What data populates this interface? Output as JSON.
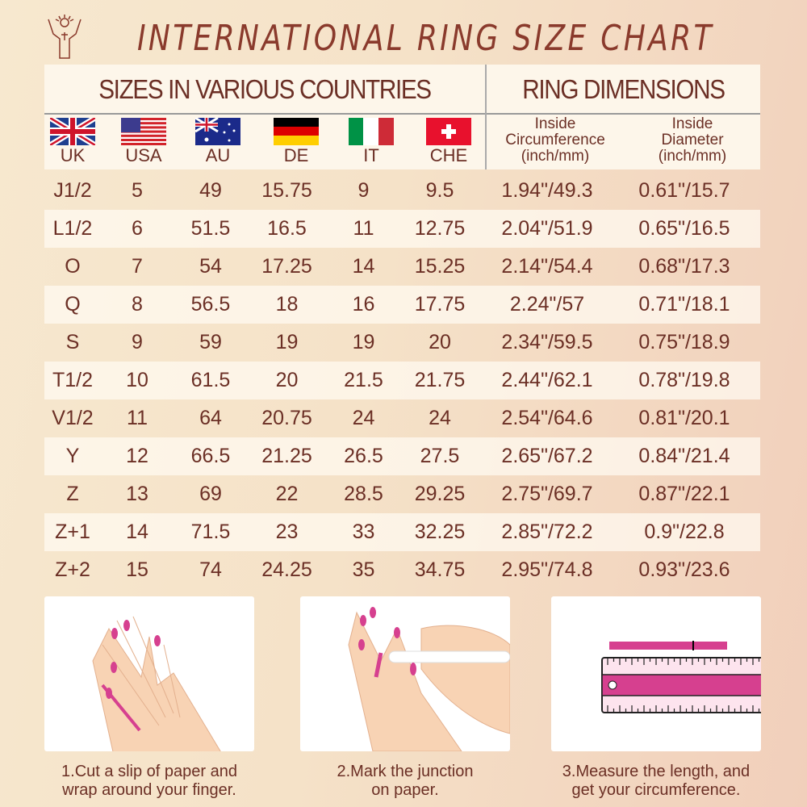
{
  "title": "INTERNATIONAL RING SIZE CHART",
  "sections": {
    "countries": "SIZES IN VARIOUS COUNTRIES",
    "dimensions": "RING DIMENSIONS"
  },
  "columns": [
    "UK",
    "USA",
    "AU",
    "DE",
    "IT",
    "CHE"
  ],
  "dimension_columns": [
    {
      "line1": "Inside",
      "line2": "Circumference",
      "line3": "(inch/mm)"
    },
    {
      "line1": "Inside",
      "line2": "Diameter",
      "line3": "(inch/mm)"
    }
  ],
  "rows": [
    [
      "J1/2",
      "5",
      "49",
      "15.75",
      "9",
      "9.5",
      "1.94\"/49.3",
      "0.61\"/15.7"
    ],
    [
      "L1/2",
      "6",
      "51.5",
      "16.5",
      "11",
      "12.75",
      "2.04\"/51.9",
      "0.65\"/16.5"
    ],
    [
      "O",
      "7",
      "54",
      "17.25",
      "14",
      "15.25",
      "2.14\"/54.4",
      "0.68\"/17.3"
    ],
    [
      "Q",
      "8",
      "56.5",
      "18",
      "16",
      "17.75",
      "2.24\"/57",
      "0.71\"/18.1"
    ],
    [
      "S",
      "9",
      "59",
      "19",
      "19",
      "20",
      "2.34\"/59.5",
      "0.75\"/18.9"
    ],
    [
      "T1/2",
      "10",
      "61.5",
      "20",
      "21.5",
      "21.75",
      "2.44\"/62.1",
      "0.78\"/19.8"
    ],
    [
      "V1/2",
      "11",
      "64",
      "20.75",
      "24",
      "24",
      "2.54\"/64.6",
      "0.81\"/20.1"
    ],
    [
      "Y",
      "12",
      "66.5",
      "21.25",
      "26.5",
      "27.5",
      "2.65\"/67.2",
      "0.84\"/21.4"
    ],
    [
      "Z",
      "13",
      "69",
      "22",
      "28.5",
      "29.25",
      "2.75\"/69.7",
      "0.87\"/22.1"
    ],
    [
      "Z+1",
      "14",
      "71.5",
      "23",
      "33",
      "32.25",
      "2.85\"/72.2",
      "0.9\"/22.8"
    ],
    [
      "Z+2",
      "15",
      "74",
      "24.25",
      "35",
      "34.75",
      "2.95\"/74.8",
      "0.93\"/23.6"
    ]
  ],
  "steps": [
    {
      "line1": "1.Cut a slip of paper and",
      "line2": "wrap around your finger."
    },
    {
      "line1": "2.Mark the junction",
      "line2": "on paper."
    },
    {
      "line1": "3.Measure the length, and",
      "line2": "get your circumference."
    }
  ],
  "colors": {
    "text": "#6b2f25",
    "accent": "#d6408f",
    "skin": "#f8d3b4"
  }
}
